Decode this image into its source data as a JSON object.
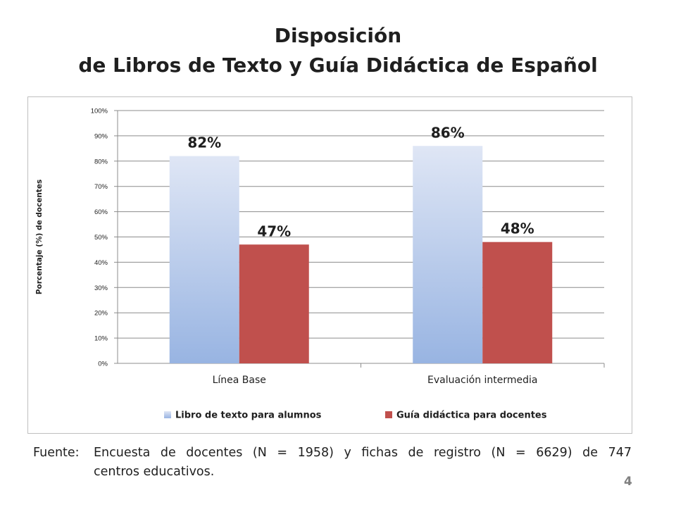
{
  "title": {
    "line1": "Disposición",
    "line2": "de Libros de Texto y Guía Didáctica de Español"
  },
  "chart_data": {
    "type": "bar",
    "categories": [
      "Línea Base",
      "Evaluación intermedia"
    ],
    "series": [
      {
        "name": "Libro de texto para alumnos",
        "values": [
          82,
          86
        ],
        "labels": [
          "82%",
          "86%"
        ],
        "color": "#a9bfe6"
      },
      {
        "name": "Guía didáctica para docentes",
        "values": [
          47,
          48
        ],
        "labels": [
          "47%",
          "48%"
        ],
        "color": "#c0504d"
      }
    ],
    "ylabel": "Porcentaje (%) de docentes",
    "ylim": [
      0,
      100
    ],
    "yticks": [
      "0%",
      "10%",
      "20%",
      "30%",
      "40%",
      "50%",
      "60%",
      "70%",
      "80%",
      "90%",
      "100%"
    ],
    "grid": true,
    "legend": "bottom"
  },
  "source": {
    "label": "Fuente:",
    "line1": "Encuesta de docentes (N = 1958) y fichas de registro (N = 6629) de 747",
    "line2": "centros educativos."
  },
  "page_number": "4"
}
